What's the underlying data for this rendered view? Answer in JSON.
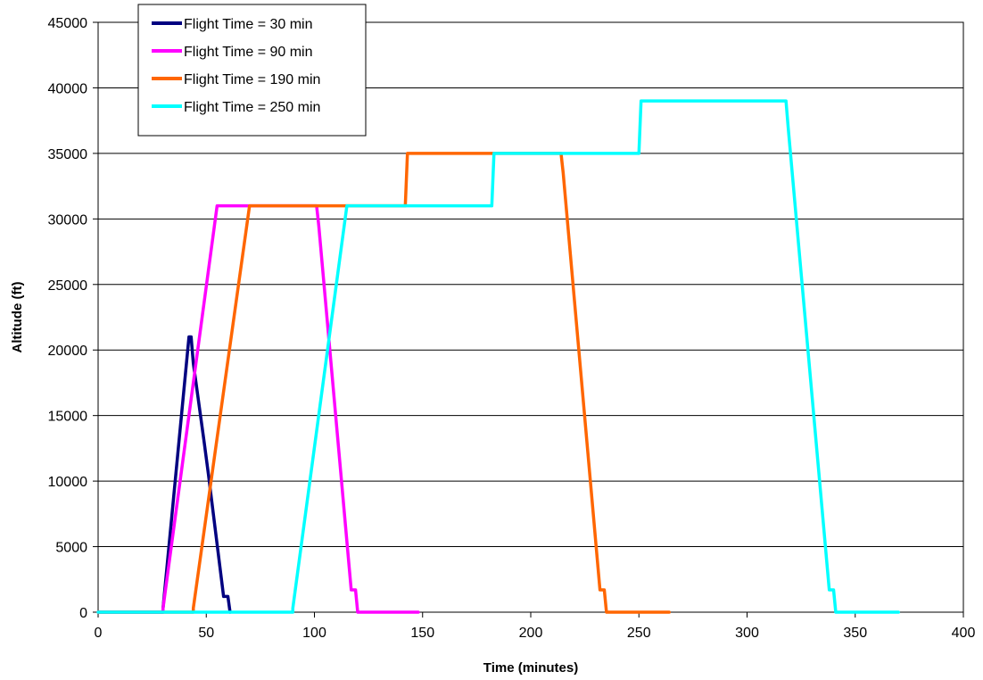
{
  "chart_data": {
    "type": "line",
    "title": "",
    "xlabel": "Time (minutes)",
    "ylabel": "Altitude (ft)",
    "xlim": [
      0,
      400
    ],
    "ylim": [
      0,
      45000
    ],
    "x_ticks": [
      "0",
      "50",
      "100",
      "150",
      "200",
      "250",
      "300",
      "350",
      "400"
    ],
    "y_ticks": [
      "0",
      "5000",
      "10000",
      "15000",
      "20000",
      "25000",
      "30000",
      "35000",
      "40000",
      "45000"
    ],
    "grid": "horizontal",
    "legend_position": "top-left",
    "series": [
      {
        "name": "Flight Time = 30 min",
        "color": "#000080",
        "points": [
          [
            0,
            0
          ],
          [
            30,
            0
          ],
          [
            30,
            300
          ],
          [
            42,
            21000
          ],
          [
            43,
            21000
          ],
          [
            44,
            19000
          ],
          [
            49,
            13000
          ],
          [
            51,
            10500
          ],
          [
            58,
            1200
          ],
          [
            60,
            1200
          ],
          [
            61,
            0
          ]
        ]
      },
      {
        "name": "Flight Time = 90 min",
        "color": "#FF00FF",
        "points": [
          [
            0,
            0
          ],
          [
            30,
            0
          ],
          [
            30,
            300
          ],
          [
            55,
            31000
          ],
          [
            101,
            31000
          ],
          [
            102,
            29500
          ],
          [
            117,
            1700
          ],
          [
            119,
            1700
          ],
          [
            120,
            0
          ],
          [
            148,
            0
          ]
        ]
      },
      {
        "name": "Flight Time = 190 min",
        "color": "#FF6600",
        "points": [
          [
            0,
            0
          ],
          [
            44,
            0
          ],
          [
            44,
            300
          ],
          [
            70,
            31000
          ],
          [
            142,
            31000
          ],
          [
            143,
            35000
          ],
          [
            214,
            35000
          ],
          [
            215,
            33500
          ],
          [
            232,
            1700
          ],
          [
            234,
            1700
          ],
          [
            235,
            0
          ],
          [
            264,
            0
          ]
        ]
      },
      {
        "name": "Flight Time = 250 min",
        "color": "#00FFFF",
        "points": [
          [
            0,
            0
          ],
          [
            90,
            0
          ],
          [
            90,
            300
          ],
          [
            115,
            31000
          ],
          [
            182,
            31000
          ],
          [
            183,
            35000
          ],
          [
            250,
            35000
          ],
          [
            251,
            39000
          ],
          [
            318,
            39000
          ],
          [
            319,
            37000
          ],
          [
            338,
            1700
          ],
          [
            340,
            1700
          ],
          [
            341,
            0
          ],
          [
            370,
            0
          ]
        ]
      }
    ]
  }
}
